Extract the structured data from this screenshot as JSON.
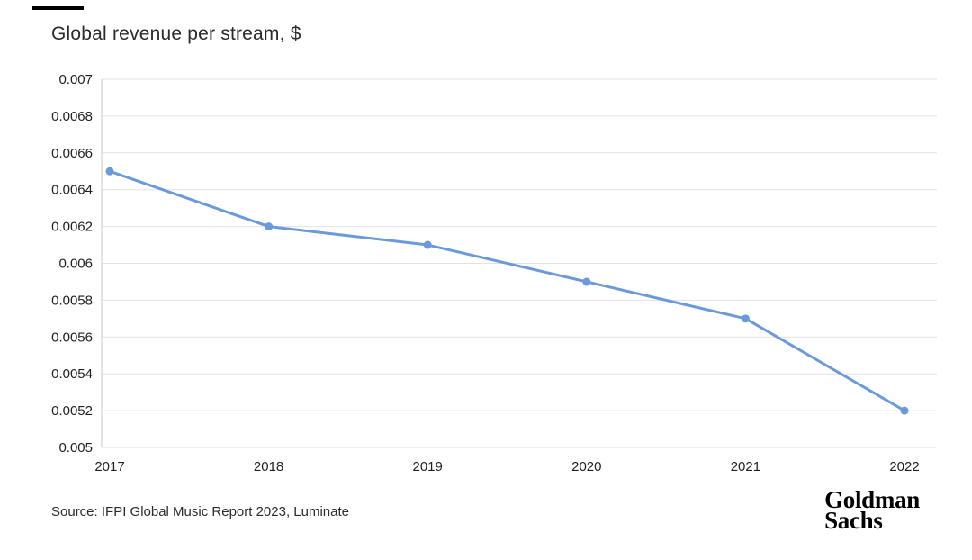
{
  "page": {
    "title": "Global revenue per stream, $",
    "source": "Source: IFPI Global Music Report 2023, Luminate",
    "brand": {
      "line1": "Goldman",
      "line2": "Sachs"
    }
  },
  "chart_data": {
    "type": "line",
    "title": "Global revenue per stream, $",
    "x": [
      "2017",
      "2018",
      "2019",
      "2020",
      "2021",
      "2022"
    ],
    "series": [
      {
        "name": "Global revenue per stream ($)",
        "values": [
          0.0065,
          0.0062,
          0.0061,
          0.0059,
          0.0057,
          0.0052
        ]
      }
    ],
    "xlabel": "",
    "ylabel": "",
    "ylim": [
      0.005,
      0.007
    ],
    "y_ticks": [
      0.005,
      0.0052,
      0.0054,
      0.0056,
      0.0058,
      0.006,
      0.0062,
      0.0064,
      0.0066,
      0.0068,
      0.007
    ],
    "y_tick_labels": [
      "0.005",
      "0.0052",
      "0.0054",
      "0.0056",
      "0.0058",
      "0.006",
      "0.0062",
      "0.0064",
      "0.0066",
      "0.0068",
      "0.007"
    ],
    "grid": "horizontal",
    "legend": "none",
    "marker": "circle",
    "line_color": "#6a9ad9",
    "grid_color": "#e2e2e2",
    "axis_color": "#c9c9c9",
    "source": "Source: IFPI Global Music Report 2023, Luminate"
  }
}
